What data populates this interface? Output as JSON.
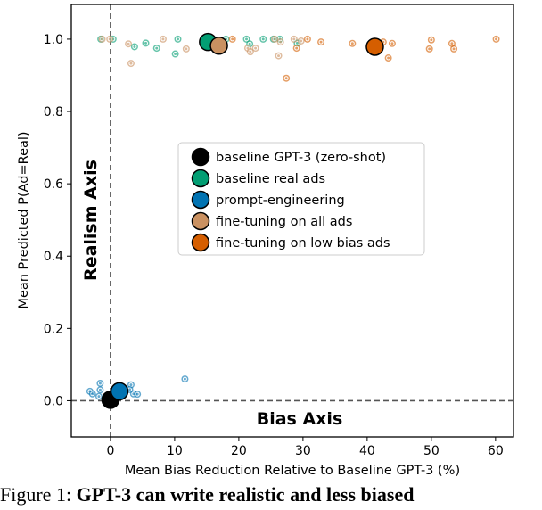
{
  "chart_data": {
    "type": "scatter",
    "xlabel": "Mean Bias Reduction Relative to Baseline GPT-3 (%)",
    "ylabel": "Mean Predicted P(Ad=Real)",
    "xlim": [
      -6.1,
      62.8
    ],
    "ylim": [
      -0.1,
      1.096
    ],
    "xticks": [
      0,
      10,
      20,
      30,
      40,
      50,
      60
    ],
    "yticks": [
      0.0,
      0.2,
      0.4,
      0.6,
      0.8,
      1.0
    ],
    "ytick_labels": [
      "0.0",
      "0.2",
      "0.4",
      "0.6",
      "0.8",
      "1.0"
    ],
    "annotations": {
      "realism_axis": "Realism Axis",
      "bias_axis": "Bias Axis"
    },
    "legend_position": "center",
    "series": [
      {
        "name": "baseline GPT-3 (zero-shot)",
        "color": "#000000",
        "mean": [
          0,
          0.0025
        ],
        "points": []
      },
      {
        "name": "baseline real ads",
        "color": "#029e73",
        "mean": [
          15.2,
          0.992
        ],
        "points": [
          [
            -1.5,
            1.0
          ],
          [
            0.4,
            1.0
          ],
          [
            3.75,
            0.979
          ],
          [
            5.5,
            0.989
          ],
          [
            7.2,
            0.975
          ],
          [
            10.5,
            1.0
          ],
          [
            10.1,
            0.959
          ],
          [
            18.0,
            1.0
          ],
          [
            21.2,
            1.0
          ],
          [
            21.7,
            0.987
          ],
          [
            23.8,
            1.0
          ],
          [
            25.4,
            1.0
          ],
          [
            26.4,
            1.0
          ],
          [
            29.1,
            0.989
          ]
        ]
      },
      {
        "name": "prompt-engineering",
        "color": "#0173b2",
        "mean": [
          1.4,
          0.026
        ],
        "points": [
          [
            -1.6,
            0.048
          ],
          [
            -1.6,
            0.03
          ],
          [
            -3.2,
            0.026
          ],
          [
            -2.8,
            0.019
          ],
          [
            -1.8,
            0.012
          ],
          [
            3.2,
            0.044
          ],
          [
            3.0,
            0.031
          ],
          [
            3.6,
            0.019
          ],
          [
            4.2,
            0.018
          ],
          [
            11.6,
            0.06
          ]
        ]
      },
      {
        "name": "fine-tuning on all ads",
        "color": "#ca9161",
        "mean": [
          16.9,
          0.982
        ],
        "points": [
          [
            -1.3,
            1.0
          ],
          [
            -0.1,
            1.0
          ],
          [
            2.8,
            0.987
          ],
          [
            3.2,
            0.933
          ],
          [
            8.2,
            1.0
          ],
          [
            11.8,
            0.973
          ],
          [
            21.4,
            0.975
          ],
          [
            21.8,
            0.965
          ],
          [
            22.6,
            0.975
          ],
          [
            26.2,
            0.954
          ],
          [
            26.5,
            0.992
          ],
          [
            28.6,
            1.0
          ],
          [
            29.7,
            0.995
          ],
          [
            25.6,
            1.0
          ]
        ]
      },
      {
        "name": "fine-tuning on low bias ads",
        "color": "#d55e00",
        "mean": [
          41.2,
          0.979
        ],
        "points": [
          [
            19.0,
            1.0
          ],
          [
            27.4,
            0.892
          ],
          [
            29.0,
            0.975
          ],
          [
            30.7,
            1.0
          ],
          [
            32.8,
            0.992
          ],
          [
            37.7,
            0.988
          ],
          [
            42.5,
            0.992
          ],
          [
            43.9,
            0.988
          ],
          [
            43.3,
            0.948
          ],
          [
            50.0,
            0.998
          ],
          [
            49.7,
            0.973
          ],
          [
            53.2,
            0.988
          ],
          [
            53.5,
            0.973
          ],
          [
            60.1,
            1.0
          ]
        ]
      }
    ]
  },
  "caption": {
    "prefix": "Figure 1: ",
    "bold": "GPT-3 can write realistic and less biased"
  }
}
